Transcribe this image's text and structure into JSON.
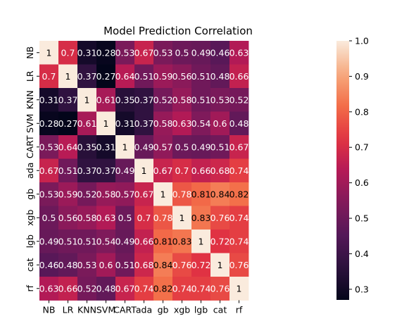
{
  "chart_data": {
    "type": "heatmap",
    "title": "Model Prediction Correlation",
    "labels": [
      "NB",
      "LR",
      "KNN",
      "SVM",
      "CART",
      "ada",
      "gb",
      "xgb",
      "lgb",
      "cat",
      "rf"
    ],
    "matrix": [
      [
        1,
        0.7,
        0.31,
        0.28,
        0.53,
        0.67,
        0.53,
        0.5,
        0.49,
        0.46,
        0.63
      ],
      [
        0.7,
        1,
        0.37,
        0.27,
        0.64,
        0.51,
        0.59,
        0.56,
        0.51,
        0.48,
        0.66
      ],
      [
        0.31,
        0.37,
        1,
        0.61,
        0.35,
        0.37,
        0.52,
        0.58,
        0.51,
        0.53,
        0.52
      ],
      [
        0.28,
        0.27,
        0.61,
        1,
        0.31,
        0.37,
        0.58,
        0.63,
        0.54,
        0.6,
        0.48
      ],
      [
        0.53,
        0.64,
        0.35,
        0.31,
        1,
        0.49,
        0.57,
        0.5,
        0.49,
        0.51,
        0.67
      ],
      [
        0.67,
        0.51,
        0.37,
        0.37,
        0.49,
        1,
        0.67,
        0.7,
        0.66,
        0.68,
        0.74
      ],
      [
        0.53,
        0.59,
        0.52,
        0.58,
        0.57,
        0.67,
        1,
        0.78,
        0.81,
        0.84,
        0.82
      ],
      [
        0.5,
        0.56,
        0.58,
        0.63,
        0.5,
        0.7,
        0.78,
        1,
        0.83,
        0.76,
        0.74
      ],
      [
        0.49,
        0.51,
        0.51,
        0.54,
        0.49,
        0.66,
        0.81,
        0.83,
        1,
        0.72,
        0.74
      ],
      [
        0.46,
        0.48,
        0.53,
        0.6,
        0.51,
        0.68,
        0.84,
        0.76,
        0.72,
        1,
        0.76
      ],
      [
        0.63,
        0.66,
        0.52,
        0.48,
        0.67,
        0.74,
        0.82,
        0.74,
        0.74,
        0.76,
        1
      ]
    ],
    "colorbar": {
      "colormap": "rocket",
      "range": [
        0.27,
        1.0
      ],
      "ticks": [
        "0.3",
        "0.4",
        "0.5",
        "0.6",
        "0.7",
        "0.8",
        "0.9",
        "1.0"
      ]
    }
  }
}
